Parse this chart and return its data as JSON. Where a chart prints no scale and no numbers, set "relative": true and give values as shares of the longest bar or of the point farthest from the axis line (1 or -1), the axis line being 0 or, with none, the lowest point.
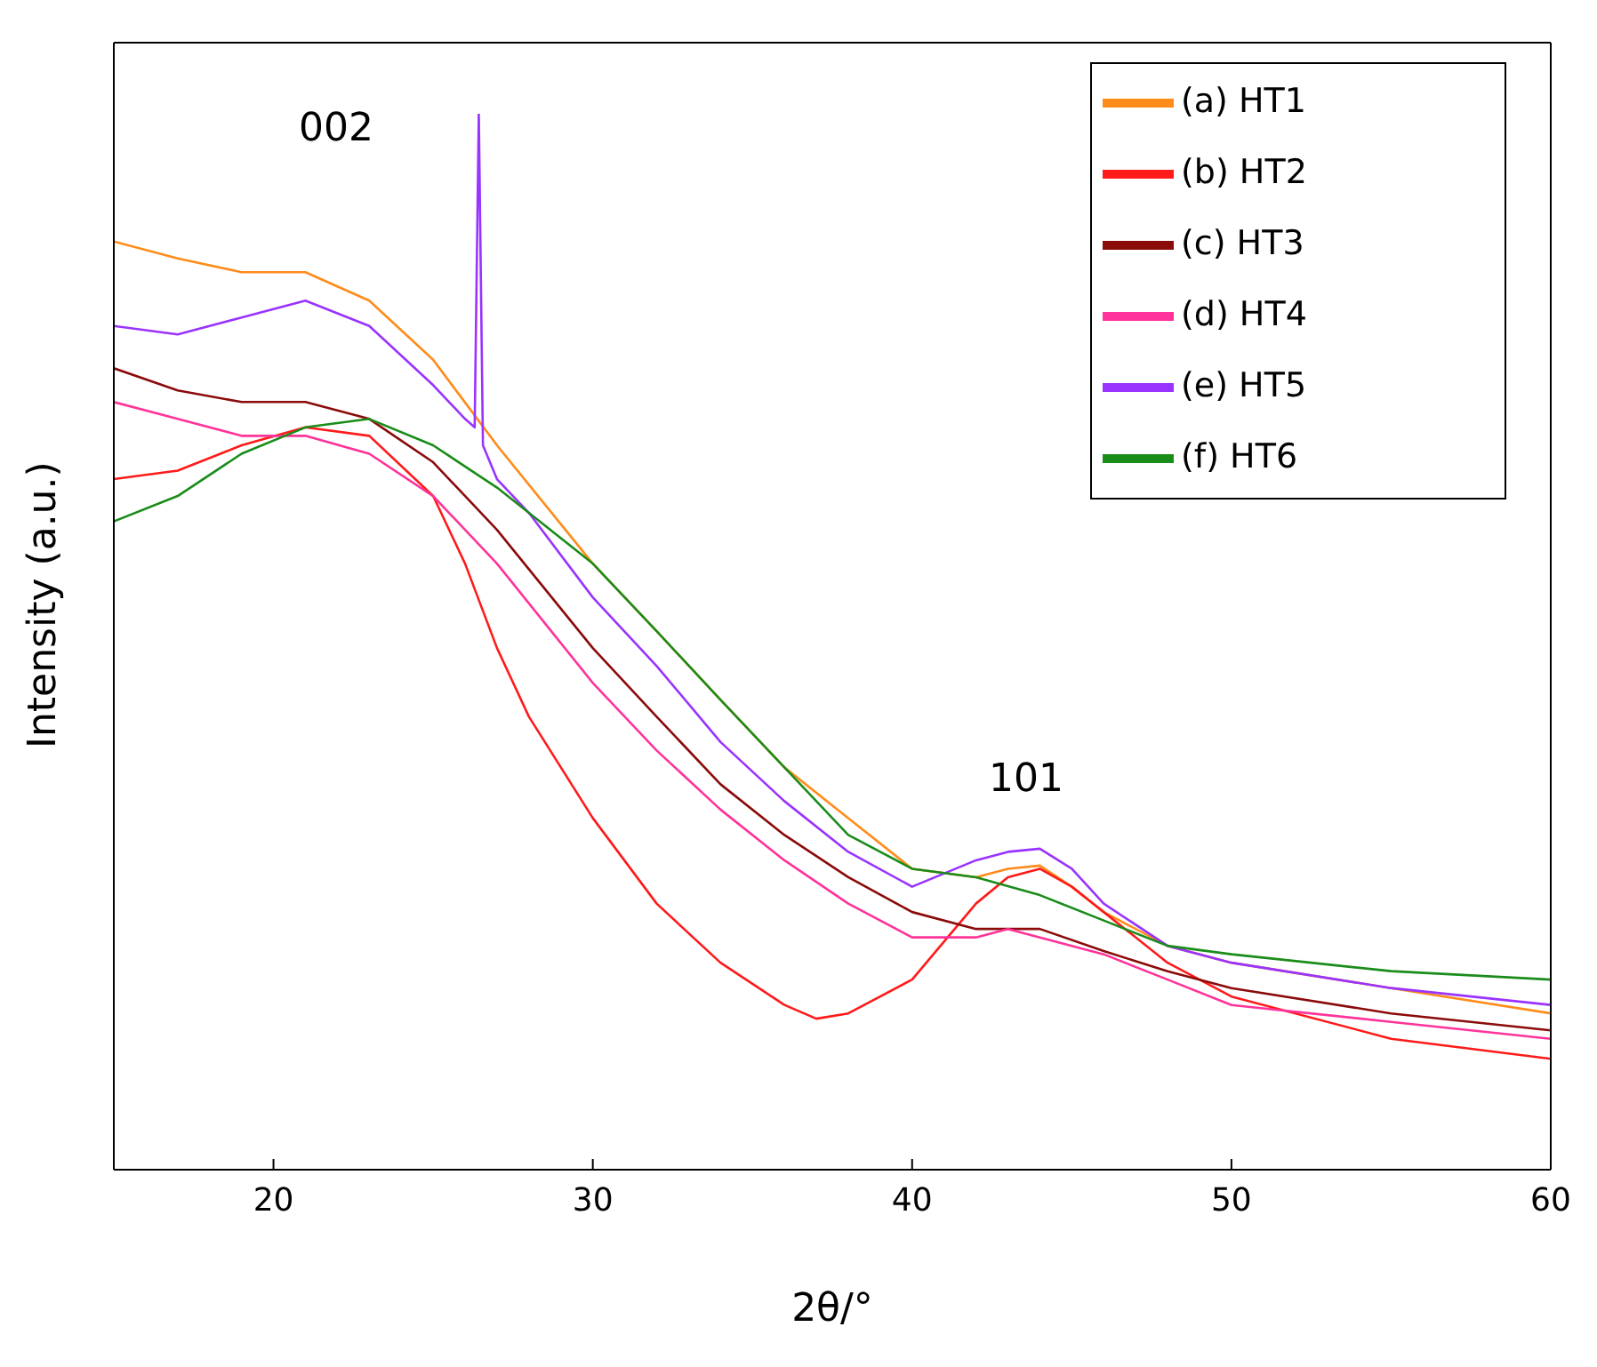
{
  "chart_data": {
    "type": "line",
    "relative": true,
    "xlabel": "2θ/°",
    "ylabel": "Intensity (a.u.)",
    "xlim": [
      15,
      60
    ],
    "xticks": [
      20,
      30,
      40,
      50,
      60
    ],
    "legend": "top right",
    "marker": "none",
    "annotations": [
      "002",
      "101"
    ],
    "series": [
      {
        "name": "(a) HT1",
        "color": "#ff8c1a",
        "x": [
          15,
          17,
          19,
          21,
          23,
          25,
          27,
          30,
          32,
          34,
          36,
          38,
          40,
          42,
          43,
          44,
          45,
          46,
          48,
          50,
          55,
          60
        ],
        "values": [
          0.879,
          0.863,
          0.85,
          0.85,
          0.823,
          0.767,
          0.686,
          0.574,
          0.51,
          0.445,
          0.381,
          0.333,
          0.285,
          0.277,
          0.285,
          0.288,
          0.268,
          0.244,
          0.212,
          0.196,
          0.172,
          0.148
        ]
      },
      {
        "name": "(b) HT2",
        "color": "#ff1a1a",
        "x": [
          15,
          17,
          19,
          21,
          23,
          25,
          26,
          27,
          28,
          30,
          32,
          34,
          36,
          37,
          38,
          40,
          42,
          43,
          44,
          45,
          46,
          48,
          50,
          55,
          60
        ],
        "values": [
          0.654,
          0.662,
          0.686,
          0.703,
          0.695,
          0.638,
          0.574,
          0.494,
          0.429,
          0.333,
          0.252,
          0.196,
          0.156,
          0.143,
          0.148,
          0.18,
          0.252,
          0.277,
          0.285,
          0.268,
          0.244,
          0.196,
          0.164,
          0.124,
          0.105
        ]
      },
      {
        "name": "(c) HT3",
        "color": "#8b0a0a",
        "x": [
          15,
          17,
          19,
          21,
          23,
          25,
          27,
          30,
          32,
          34,
          36,
          38,
          40,
          42,
          43,
          44,
          46,
          48,
          50,
          55,
          60
        ],
        "values": [
          0.759,
          0.738,
          0.727,
          0.727,
          0.711,
          0.67,
          0.606,
          0.494,
          0.429,
          0.365,
          0.317,
          0.277,
          0.244,
          0.228,
          0.228,
          0.228,
          0.207,
          0.188,
          0.172,
          0.148,
          0.132
        ]
      },
      {
        "name": "(d) HT4",
        "color": "#ff3399",
        "x": [
          15,
          17,
          19,
          21,
          23,
          25,
          27,
          30,
          32,
          34,
          36,
          38,
          40,
          42,
          43,
          44,
          46,
          48,
          50,
          55,
          60
        ],
        "values": [
          0.727,
          0.711,
          0.695,
          0.695,
          0.678,
          0.638,
          0.574,
          0.461,
          0.397,
          0.341,
          0.293,
          0.252,
          0.22,
          0.22,
          0.228,
          0.22,
          0.204,
          0.18,
          0.156,
          0.14,
          0.124
        ]
      },
      {
        "name": "(e) HT5",
        "color": "#9933ff",
        "x": [
          15,
          17,
          19,
          21,
          23,
          25,
          26,
          26.3,
          26.43,
          26.56,
          27,
          28,
          30,
          32,
          34,
          36,
          38,
          40,
          42,
          43,
          44,
          45,
          46,
          48,
          50,
          55,
          60
        ],
        "values": [
          0.799,
          0.791,
          0.807,
          0.823,
          0.799,
          0.743,
          0.711,
          0.703,
          1,
          0.686,
          0.654,
          0.622,
          0.542,
          0.477,
          0.405,
          0.349,
          0.301,
          0.268,
          0.293,
          0.301,
          0.304,
          0.285,
          0.252,
          0.212,
          0.196,
          0.172,
          0.156
        ]
      },
      {
        "name": "(f) HT6",
        "color": "#1a8c1a",
        "x": [
          15,
          17,
          19,
          21,
          23,
          25,
          27,
          30,
          32,
          34,
          36,
          38,
          40,
          42,
          44,
          46,
          48,
          50,
          55,
          60
        ],
        "values": [
          0.614,
          0.638,
          0.678,
          0.703,
          0.711,
          0.686,
          0.646,
          0.574,
          0.51,
          0.445,
          0.381,
          0.317,
          0.285,
          0.277,
          0.26,
          0.236,
          0.212,
          0.204,
          0.188,
          0.18
        ]
      }
    ]
  }
}
